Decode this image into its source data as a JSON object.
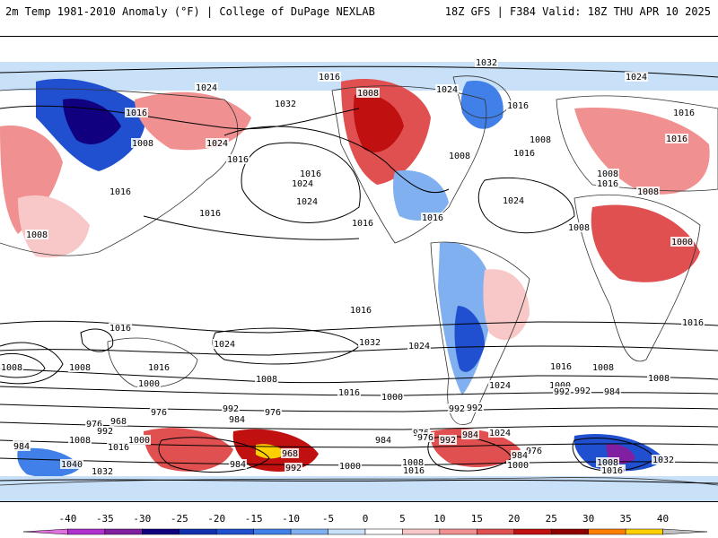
{
  "header": {
    "left_title": "2m Temp 1981-2010 Anomaly (°F) | College of DuPage NEXLAB",
    "right_title": "18Z GFS | F384 Valid: 18Z THU APR 10 2025"
  },
  "map": {
    "projection": "global cylindrical",
    "field": "2m temperature anomaly",
    "contour_field": "mean sea-level pressure isobars",
    "pressure_labels": [
      "1032",
      "1016",
      "1024",
      "1024",
      "1008",
      "1024",
      "1016",
      "1032",
      "1016",
      "1016",
      "1008",
      "1024",
      "1016",
      "1008",
      "1008",
      "1016",
      "1016",
      "1024",
      "1016",
      "1024",
      "1016",
      "1008",
      "1016",
      "1024",
      "1016",
      "1016",
      "1008",
      "1016",
      "1008",
      "1016",
      "1000",
      "1008",
      "1024",
      "1016",
      "1032",
      "1024",
      "1016",
      "1016",
      "1000",
      "1008",
      "1008",
      "1008",
      "1000",
      "1008",
      "1016",
      "1008",
      "992",
      "984",
      "1016",
      "992",
      "976",
      "984",
      "976",
      "1000",
      "1024",
      "992",
      "992",
      "976",
      "976",
      "968",
      "992",
      "984",
      "1016",
      "1008",
      "1040",
      "1000",
      "984",
      "968",
      "984",
      "976",
      "992",
      "984",
      "976",
      "984",
      "992",
      "1000",
      "1008",
      "1016",
      "1024",
      "1032",
      "1000",
      "1016",
      "992",
      "1008",
      "1016",
      "1032",
      "984"
    ]
  },
  "colorbar": {
    "ticks": [
      "-40",
      "-35",
      "-30",
      "-25",
      "-20",
      "-15",
      "-10",
      "-5",
      "0",
      "5",
      "10",
      "15",
      "20",
      "25",
      "30",
      "35",
      "40"
    ],
    "colors": [
      "#e070e0",
      "#b030d0",
      "#8020a0",
      "#100080",
      "#1030b0",
      "#2050d0",
      "#4080e8",
      "#80b0f0",
      "#c8e0f8",
      "#ffffff",
      "#f8c8c8",
      "#f09090",
      "#e05050",
      "#c01010",
      "#900000",
      "#ff8000",
      "#ffd000",
      "#c0c0c0"
    ]
  }
}
